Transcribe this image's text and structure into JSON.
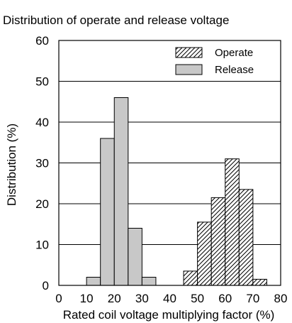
{
  "chart_data": {
    "type": "bar",
    "title": "Distribution of operate and release voltage",
    "xlabel": "Rated coil voltage multiplying factor (%)",
    "ylabel": "Distribution (%)",
    "xlim": [
      0,
      80
    ],
    "ylim": [
      0,
      60
    ],
    "x_ticks": [
      0,
      10,
      20,
      30,
      40,
      50,
      60,
      70,
      80
    ],
    "y_ticks": [
      0,
      10,
      20,
      30,
      40,
      50,
      60
    ],
    "bin_width": 5,
    "grid": "horizontal",
    "legend": "top-right",
    "series": [
      {
        "name": "Release",
        "style": "solid-gray",
        "color": "#c8c8c8",
        "bins": [
          {
            "x": 12.5,
            "value": 2
          },
          {
            "x": 17.5,
            "value": 36
          },
          {
            "x": 22.5,
            "value": 46
          },
          {
            "x": 27.5,
            "value": 14
          },
          {
            "x": 32.5,
            "value": 2
          }
        ]
      },
      {
        "name": "Operate",
        "style": "hatched",
        "color": "#000000",
        "bins": [
          {
            "x": 47.5,
            "value": 3.5
          },
          {
            "x": 52.5,
            "value": 15.5
          },
          {
            "x": 57.5,
            "value": 21.5
          },
          {
            "x": 62.5,
            "value": 31
          },
          {
            "x": 67.5,
            "value": 23.5
          },
          {
            "x": 72.5,
            "value": 1.5
          }
        ]
      }
    ]
  }
}
